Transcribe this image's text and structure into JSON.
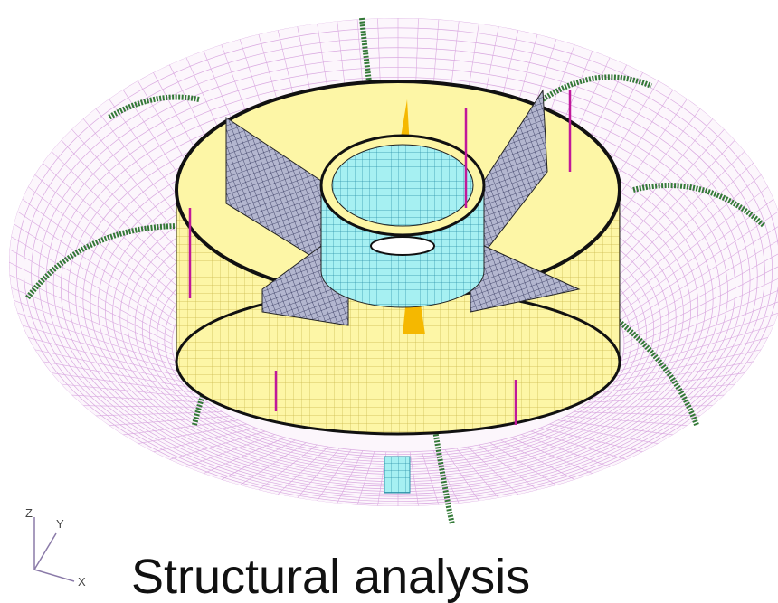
{
  "caption": "Structural analysis",
  "axes": {
    "z": "Z",
    "y": "Y",
    "x": "X"
  }
}
